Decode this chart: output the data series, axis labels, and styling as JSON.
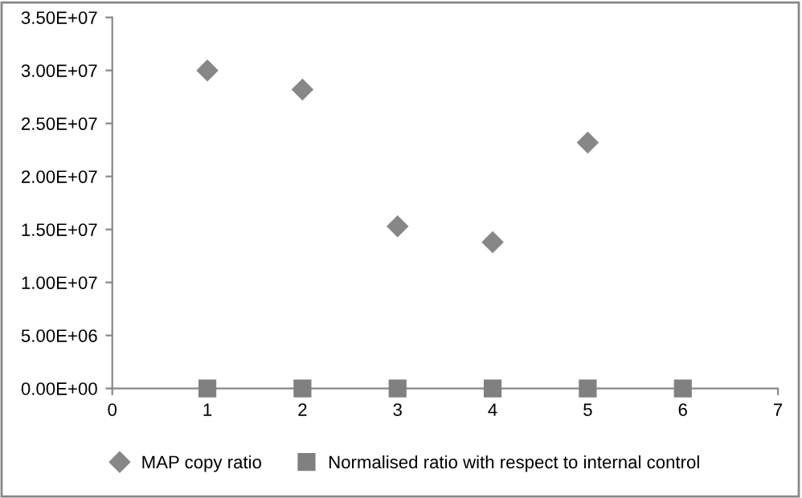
{
  "chart_data": {
    "type": "scatter",
    "legend": "bottom",
    "grid": false,
    "series": [
      {
        "name": "MAP copy ratio",
        "color": "#878787",
        "marker": "diamond",
        "x": [
          1,
          2,
          3,
          4,
          5
        ],
        "values": [
          30000000,
          28200000,
          15300000,
          13800000,
          23200000
        ]
      },
      {
        "name": "Normalised ratio with respect to internal control",
        "color": "#808080",
        "marker": "square",
        "x": [
          1,
          2,
          3,
          4,
          5,
          6
        ],
        "values": [
          0,
          0,
          0,
          0,
          0,
          0
        ]
      }
    ],
    "xlim": [
      0,
      7
    ],
    "xticks": [
      0,
      1,
      2,
      3,
      4,
      5,
      6,
      7
    ],
    "ylim": [
      0,
      35000000
    ],
    "yticks": [
      {
        "value": 0,
        "label": "0.00E+00"
      },
      {
        "value": 5000000,
        "label": "5.00E+06"
      },
      {
        "value": 10000000,
        "label": "1.00E+07"
      },
      {
        "value": 15000000,
        "label": "1.50E+07"
      },
      {
        "value": 20000000,
        "label": "2.00E+07"
      },
      {
        "value": 25000000,
        "label": "2.50E+07"
      },
      {
        "value": 30000000,
        "label": "3.00E+07"
      },
      {
        "value": 35000000,
        "label": "3.50E+07"
      }
    ]
  }
}
